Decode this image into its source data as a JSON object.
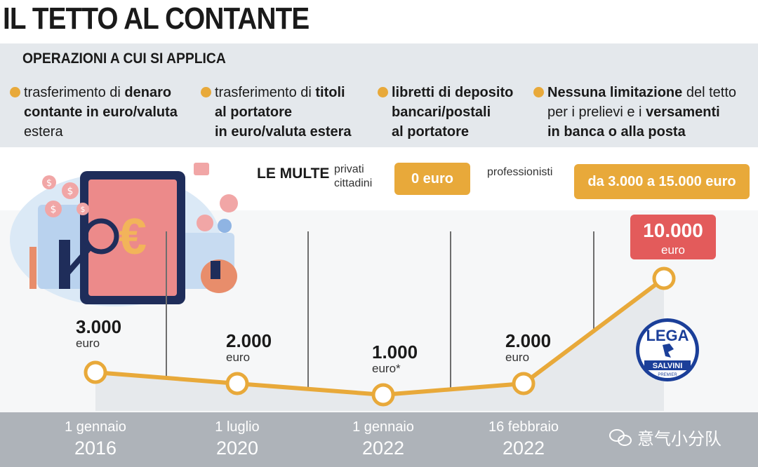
{
  "title": "IL TETTO AL CONTANTE",
  "operations": {
    "heading": "OPERAZIONI A CUI SI APPLICA",
    "items": [
      {
        "lines": [
          [
            "trasferimento di ",
            "denaro"
          ],
          [
            "",
            "contante in euro/valuta"
          ],
          [
            "",
            "estera"
          ]
        ]
      },
      {
        "lines": [
          [
            "trasferimento di ",
            "titoli"
          ],
          [
            "",
            "al portatore"
          ],
          [
            "",
            "in euro/valuta estera"
          ]
        ]
      },
      {
        "lines": [
          [
            "",
            "libretti di deposito"
          ],
          [
            "",
            "bancari/postali"
          ],
          [
            "",
            "al portatore"
          ]
        ]
      },
      {
        "lines": [
          [
            "",
            "Nessuna limitazione",
            " del tetto"
          ],
          [
            "per i prelievi e i ",
            "versamenti"
          ],
          [
            "",
            "in banca o alla posta"
          ]
        ]
      }
    ]
  },
  "fines": {
    "label": "LE MULTE",
    "private_label_1": "privati",
    "private_label_2": "cittadini",
    "private_value": "0 euro",
    "pro_label": "professionisti",
    "pro_value": "da 3.000 a 15.000 euro"
  },
  "colors": {
    "accent": "#e8a93a",
    "highlight": "#e35b5b",
    "date_band": "#aeb3b9",
    "band": "#e4e8ec"
  },
  "chart_data": {
    "type": "line",
    "x": [
      "1 gennaio 2016",
      "1 luglio 2020",
      "1 gennaio 2022",
      "16 febbraio 2022",
      ""
    ],
    "dates": [
      {
        "day": "1 gennaio",
        "year": "2016"
      },
      {
        "day": "1 luglio",
        "year": "2020"
      },
      {
        "day": "1 gennaio",
        "year": "2022"
      },
      {
        "day": "16 febbraio",
        "year": "2022"
      }
    ],
    "values": [
      3000,
      2000,
      1000,
      2000,
      10000
    ],
    "labels": [
      {
        "value": "3.000",
        "unit": "euro"
      },
      {
        "value": "2.000",
        "unit": "euro"
      },
      {
        "value": "1.000",
        "unit": "euro*"
      },
      {
        "value": "2.000",
        "unit": "euro"
      },
      {
        "value": "10.000",
        "unit": "euro"
      }
    ],
    "highlight_index": 4
  },
  "logo": {
    "top": "LEGA",
    "bottom": "SALVINI",
    "tiny": "PREMIER"
  },
  "watermark": "意气小分队",
  "icons": [
    "euro-tablet-illustration",
    "dollar-coin-icon",
    "magnifier-icon",
    "lega-logo",
    "wechat-icon"
  ]
}
